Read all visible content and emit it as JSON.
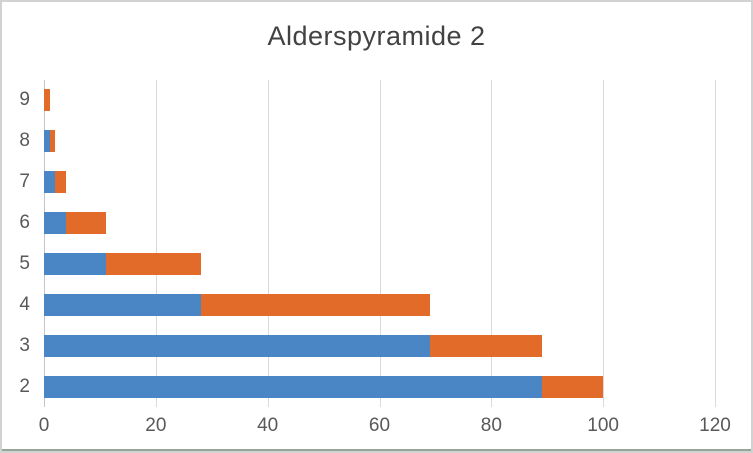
{
  "chart_data": {
    "type": "bar",
    "orientation": "horizontal",
    "stacked": true,
    "title": "Alderspyramide 2",
    "categories": [
      "9",
      "8",
      "7",
      "6",
      "5",
      "4",
      "3",
      "2"
    ],
    "series": [
      {
        "name": "series-blue",
        "color": "#4a85c6",
        "values": [
          0,
          1,
          2,
          4,
          11,
          28,
          69,
          89
        ]
      },
      {
        "name": "series-orange",
        "color": "#e26b29",
        "values": [
          1,
          1,
          2,
          7,
          17,
          41,
          20,
          11
        ]
      }
    ],
    "totals": [
      1,
      2,
      4,
      11,
      28,
      69,
      89,
      100
    ],
    "x_axis": {
      "tick_labels": [
        "0",
        "20",
        "40",
        "60",
        "80",
        "100",
        "120"
      ],
      "ticks": [
        0,
        20,
        40,
        60,
        80,
        100,
        120
      ],
      "min": 0,
      "max": 120
    },
    "y_axis_label": "",
    "xlabel": "",
    "ylabel": "",
    "grid": true,
    "legend": false
  },
  "colors": {
    "background": "#ffffff",
    "border": "#d2d2d2",
    "bottom_edge": "#96a696",
    "gridline": "#d9d9d9",
    "axis_line": "#c6c6c6",
    "title_text": "#424242",
    "axis_text": "#595959"
  }
}
